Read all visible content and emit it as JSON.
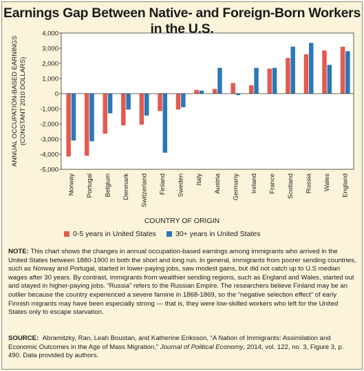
{
  "title": "Earnings Gap Between Native- and Foreign-Born Workers in the U.S.",
  "chart_data": {
    "type": "bar",
    "title": "Earnings Gap Between Native- and Foreign-Born Workers in the U.S.",
    "ylabel": "ANNUAL OCCUPATION-BASED EARNINGS (CONSTANT 2010 DOLLARS)",
    "xlabel": "COUNTRY OF ORIGIN",
    "ylim": [
      -5000,
      4000
    ],
    "yticks": [
      4000,
      3000,
      2000,
      1000,
      0,
      -1000,
      -2000,
      -3000,
      -4000,
      -5000
    ],
    "ytick_labels": [
      "4,000",
      "3,000",
      "2,000",
      "1,000",
      "0",
      "-1,000",
      "-2,000",
      "-3,000",
      "-4,000",
      "-5,000"
    ],
    "grid": false,
    "legend_position": "bottom",
    "categories": [
      "Norway",
      "Portugal",
      "Belgium",
      "Denmark",
      "Switzerland",
      "Finland",
      "Sweden",
      "Italy",
      "Austria",
      "Germany",
      "Ireland",
      "France",
      "Scotland",
      "Russia",
      "Wales",
      "England"
    ],
    "series": [
      {
        "name": "0-5 years in United States",
        "color": "#e35a4f",
        "values": [
          -4150,
          -4100,
          -2650,
          -2100,
          -2050,
          -1150,
          -1050,
          250,
          300,
          700,
          550,
          1650,
          2350,
          2600,
          2850,
          3100
        ]
      },
      {
        "name": "30+ years in United States",
        "color": "#2b78b8",
        "values": [
          -3100,
          -3150,
          -1300,
          -1050,
          -1450,
          -3900,
          -900,
          200,
          1700,
          -100,
          1700,
          1700,
          3100,
          3350,
          1900,
          2800
        ]
      }
    ]
  },
  "note": {
    "label": "NOTE:",
    "text": "This chart shows the changes in annual occupation-based earnings among immigrants who arrived in the United States between 1880-1900 in both the short and long run. In general, immigrants from poorer sending countries, such as Norway and Portugal, started in lower-paying jobs, saw modest gains, but did not catch up to U.S median wages after 30 years. By contrast, immigrants from wealthier sending regions, such as England and Wales, started out and stayed in higher-paying jobs. “Russia” refers to the Russian Empire. The researchers believe Finland may be an outlier because the country experienced a severe famine in 1868-1869, so the “negative selection effect” of early Finnish migrants may have been especially strong — that is, they were low-skilled workers who left for the United States only to escape starvation."
  },
  "source": {
    "label": "SOURCE:",
    "authors": "Abramitzky, Ran, Leah Boustan, and Katherine Eriksson, “A Nation of Immigrants: Assimilation and Economic Outcomes in the Age of Mass Migration,”",
    "journal": "Journal of Political Economy",
    "details": ", 2014, vol. 122, no. 3, Figure 3, p. 490. Data provided by authors."
  }
}
